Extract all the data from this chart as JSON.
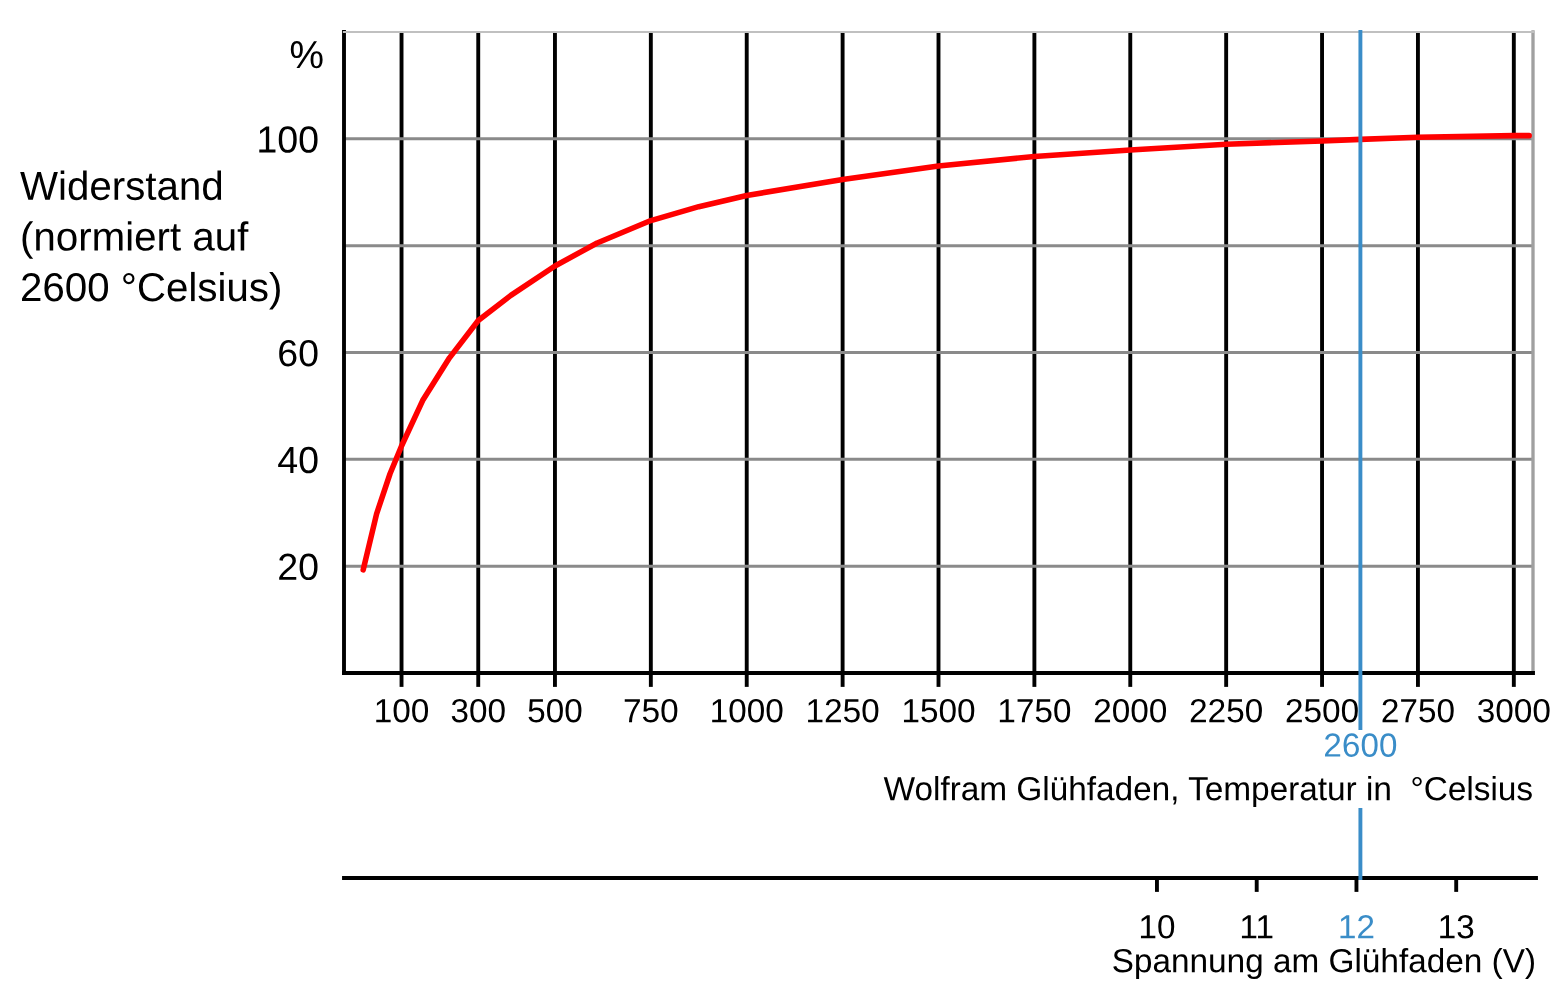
{
  "chart_data": {
    "type": "line",
    "ylabel": "Widerstand\n(normiert auf\n2600 °Celsius)",
    "xlabel": "Wolfram Glühfaden, Temperatur in  °Celsius",
    "x2label": "Spannung am Glühfaden (V)",
    "annotations": [
      "%"
    ],
    "x": [
      0,
      35,
      70,
      100,
      155,
      225,
      300,
      385,
      500,
      610,
      750,
      875,
      1000,
      1250,
      1500,
      1750,
      2000,
      2250,
      2500,
      2600,
      2750,
      3000,
      3040
    ],
    "values": [
      19.3,
      29.8,
      37.3,
      42.5,
      51,
      59,
      66,
      70.7,
      76.2,
      80.5,
      84.7,
      87.3,
      89.4,
      92.4,
      94.9,
      96.7,
      97.9,
      99,
      99.6,
      99.9,
      100.3,
      100.6,
      100.6
    ],
    "color": "#ff0000",
    "xlim": [
      -50,
      3050
    ],
    "xticks": [
      100,
      300,
      500,
      750,
      1000,
      1250,
      1500,
      1750,
      2000,
      2250,
      2500,
      2750,
      3000
    ],
    "ylim": [
      0,
      120
    ],
    "yticks": [
      20,
      40,
      60,
      {
        "value": 80,
        "label": null
      },
      100
    ],
    "x2lim": [
      1.85,
      13.8
    ],
    "x2ticks": [
      10,
      11,
      12,
      13
    ],
    "ref_lines": [
      {
        "axis": "x",
        "value": 2600,
        "label": "2600",
        "color": "#3a8dc8"
      }
    ],
    "grid": true
  }
}
